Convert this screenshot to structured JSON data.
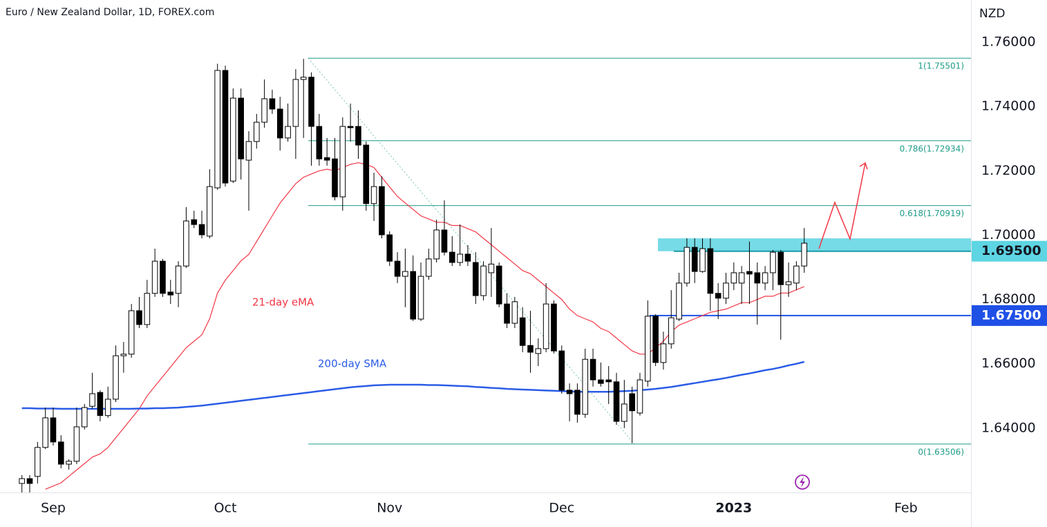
{
  "chart_data": {
    "type": "candlestick",
    "title": "Euro / New Zealand Dollar, 1D, FOREX.com",
    "unit": "NZD",
    "categories": [
      null,
      null,
      null,
      null,
      "Sep",
      null,
      null,
      null,
      null,
      null,
      null,
      null,
      null,
      null,
      null,
      null,
      null,
      null,
      null,
      null,
      null,
      null,
      null,
      null,
      null,
      null,
      "Oct",
      null,
      null,
      null,
      null,
      null,
      null,
      null,
      null,
      null,
      null,
      null,
      null,
      null,
      null,
      null,
      null,
      null,
      null,
      null,
      null,
      "Nov",
      null,
      null,
      null,
      null,
      null,
      null,
      null,
      null,
      null,
      null,
      null,
      null,
      null,
      null,
      null,
      null,
      null,
      null,
      null,
      null,
      null,
      "Dec",
      null,
      null,
      null,
      null,
      null,
      null,
      null,
      null,
      null,
      null,
      null,
      null,
      null,
      null,
      null,
      null,
      null,
      null,
      null,
      null,
      null,
      "2023",
      null,
      null,
      null,
      null,
      null,
      null,
      null,
      null,
      null,
      null,
      null,
      null,
      null,
      null,
      null,
      null,
      null,
      null,
      null,
      null,
      null,
      "Feb"
    ],
    "open": [
      1.6228,
      1.6243,
      1.625,
      1.634,
      1.6432,
      1.6357,
      1.6288,
      1.6297,
      1.6404,
      1.6468,
      1.6511,
      1.6439,
      1.649,
      1.6625,
      1.663,
      1.6765,
      1.6722,
      1.6819,
      1.6919,
      1.6823,
      1.6819,
      1.6904,
      1.7048,
      1.7033,
      1.6997,
      1.7147,
      1.7512,
      1.7168,
      1.7426,
      1.7233,
      1.7291,
      1.7351,
      1.7424,
      1.7392,
      1.7302,
      1.7338,
      1.7484,
      1.7491,
      1.7338,
      1.7241,
      1.7237,
      1.7119,
      1.7338,
      1.7338,
      1.728,
      1.7098,
      1.7151,
      1.7001,
      1.6919,
      1.6872,
      1.6887,
      1.6739,
      1.6872,
      1.6926,
      1.7016,
      1.6947,
      1.6915,
      1.6941,
      1.6915,
      1.6812,
      1.6883,
      1.6904,
      1.6786,
      1.6726,
      1.6743,
      1.6657,
      1.6632,
      1.6647,
      1.6786,
      1.664,
      1.6518,
      1.6518,
      1.6443,
      1.6614,
      1.655,
      1.655,
      1.6544,
      1.6421,
      1.6507,
      1.6447,
      1.6546,
      1.6748,
      1.6604,
      1.6662,
      1.6739,
      1.6851,
      1.6962,
      1.6887,
      1.6958,
      1.6819,
      1.6804,
      1.6851,
      1.6851,
      1.6887,
      1.6883,
      1.6851,
      1.6883,
      1.6947,
      1.6846,
      1.6851,
      1.6904,
      null,
      null,
      null,
      null,
      null,
      null,
      null,
      null,
      null,
      null,
      null,
      null,
      null
    ],
    "high": [
      1.6254,
      1.6254,
      1.6357,
      1.6464,
      1.6464,
      1.6378,
      1.6303,
      1.6464,
      1.6475,
      1.6572,
      1.6518,
      1.6529,
      1.6657,
      1.6668,
      1.6786,
      1.6808,
      1.6861,
      1.6958,
      1.6926,
      1.6861,
      1.6919,
      1.7087,
      1.7076,
      1.7076,
      1.7205,
      1.7533,
      1.7527,
      1.7456,
      1.7456,
      1.7323,
      1.7377,
      1.7484,
      1.7452,
      1.743,
      1.7409,
      1.7516,
      1.7548,
      1.7506,
      1.7377,
      1.7302,
      1.7302,
      1.7366,
      1.7409,
      1.7388,
      1.7291,
      1.7194,
      1.7183,
      1.7012,
      1.6947,
      1.6958,
      1.6937,
      1.6915,
      1.6958,
      1.7048,
      1.7108,
      1.6997,
      1.7033,
      1.6969,
      1.6947,
      1.6919,
      1.7022,
      1.6915,
      1.6819,
      1.6808,
      1.6776,
      1.6765,
      1.6679,
      1.6851,
      1.6797,
      1.6657,
      1.6539,
      1.6539,
      1.6647,
      1.6647,
      1.6604,
      1.6593,
      1.6572,
      1.655,
      1.6529,
      1.6572,
      1.6797,
      1.6754,
      1.67,
      1.6829,
      1.6883,
      1.699,
      1.699,
      1.699,
      1.699,
      1.6851,
      1.6883,
      1.6915,
      1.6904,
      1.698,
      1.6915,
      1.6904,
      1.6954,
      1.6954,
      1.6915,
      1.6919,
      1.7022,
      null,
      null,
      null,
      null,
      null,
      null,
      null,
      null,
      null,
      null,
      null,
      null,
      null
    ],
    "low": [
      1.62,
      1.62,
      1.6228,
      1.6335,
      1.6346,
      1.6275,
      1.6271,
      1.6288,
      1.6396,
      1.646,
      1.6421,
      1.6432,
      1.6481,
      1.6572,
      1.6619,
      1.6711,
      1.6711,
      1.6808,
      1.6808,
      1.6786,
      1.6776,
      1.6898,
      1.7022,
      1.699,
      1.699,
      1.7141,
      1.7151,
      1.7162,
      1.7173,
      1.7076,
      1.7269,
      1.7334,
      1.7377,
      1.7263,
      1.7291,
      1.7237,
      1.7302,
      1.7216,
      1.7216,
      1.7216,
      1.7108,
      1.7076,
      1.7291,
      1.7237,
      1.7076,
      1.7044,
      1.699,
      1.6904,
      1.6851,
      1.6776,
      1.6733,
      1.6733,
      1.6861,
      1.6915,
      1.6937,
      1.6904,
      1.6904,
      1.6904,
      1.6786,
      1.6797,
      1.6808,
      1.6776,
      1.6711,
      1.6711,
      1.6636,
      1.6572,
      1.6593,
      1.6636,
      1.6632,
      1.6507,
      1.6421,
      1.6417,
      1.6432,
      1.6529,
      1.6529,
      1.6475,
      1.641,
      1.64,
      1.6353,
      1.6439,
      1.6529,
      1.6593,
      1.6582,
      1.6647,
      1.6733,
      1.684,
      1.6851,
      1.6883,
      1.6765,
      1.6739,
      1.6786,
      1.6829,
      1.6786,
      1.6786,
      1.6722,
      1.6829,
      1.6829,
      1.6675,
      1.6808,
      1.6829,
      1.6883,
      null,
      null,
      null,
      null,
      null,
      null,
      null,
      null,
      null,
      null,
      null,
      null,
      null
    ],
    "close": [
      1.6243,
      1.6228,
      1.634,
      1.6432,
      1.6357,
      1.6288,
      1.6297,
      1.6404,
      1.6464,
      1.6507,
      1.6439,
      1.649,
      1.6625,
      1.663,
      1.6765,
      1.6722,
      1.6819,
      1.6919,
      1.6819,
      1.6814,
      1.6904,
      1.7044,
      1.7033,
      1.7001,
      1.7151,
      1.7512,
      1.7162,
      1.7426,
      1.7237,
      1.7291,
      1.7351,
      1.7424,
      1.7392,
      1.7302,
      1.7338,
      1.7484,
      1.7491,
      1.7338,
      1.7237,
      1.7233,
      1.7119,
      1.7338,
      1.7334,
      1.728,
      1.7098,
      1.7151,
      1.7001,
      1.6919,
      1.6872,
      1.6887,
      1.6739,
      1.6872,
      1.6926,
      1.7016,
      1.6947,
      1.6915,
      1.6941,
      1.6919,
      1.6812,
      1.6904,
      1.691,
      1.6786,
      1.6726,
      1.6793,
      1.6657,
      1.6636,
      1.6647,
      1.6786,
      1.664,
      1.6518,
      1.6507,
      1.6443,
      1.6614,
      1.655,
      1.6539,
      1.6544,
      1.6421,
      1.6475,
      1.6454,
      1.655,
      1.6748,
      1.6604,
      1.6662,
      1.6743,
      1.6851,
      1.6962,
      1.6887,
      1.6958,
      1.6819,
      1.6804,
      1.6851,
      1.6883,
      1.6883,
      1.6879,
      1.6851,
      1.6883,
      1.6947,
      1.6846,
      1.6855,
      1.6904,
      1.6975,
      null,
      null,
      null,
      null,
      null,
      null,
      null,
      null,
      null,
      null,
      null,
      null,
      null
    ],
    "up_color": "#ffffff",
    "down_color": "#000000",
    "series": [
      {
        "name": "21-day eMA",
        "color": "#f23645",
        "values": [
          null,
          null,
          null,
          1.621,
          1.622,
          1.623,
          1.625,
          1.627,
          1.629,
          1.631,
          1.632,
          1.634,
          1.637,
          1.64,
          1.643,
          1.646,
          1.65,
          1.653,
          1.656,
          1.659,
          1.662,
          1.665,
          1.667,
          1.669,
          1.674,
          1.682,
          1.686,
          1.689,
          1.692,
          1.694,
          1.698,
          1.702,
          1.706,
          1.71,
          1.713,
          1.716,
          1.718,
          1.719,
          1.72,
          1.7205,
          1.72,
          1.721,
          1.722,
          1.7225,
          1.722,
          1.721,
          1.718,
          1.715,
          1.712,
          1.71,
          1.708,
          1.706,
          1.705,
          1.704,
          1.704,
          1.703,
          1.703,
          1.702,
          1.701,
          1.699,
          1.697,
          1.695,
          1.693,
          1.691,
          1.689,
          1.688,
          1.686,
          1.684,
          1.682,
          1.68,
          1.677,
          1.675,
          1.674,
          1.673,
          1.671,
          1.67,
          1.668,
          1.666,
          1.664,
          1.663,
          1.663,
          1.665,
          1.667,
          1.67,
          1.672,
          1.673,
          1.674,
          1.675,
          1.676,
          1.6765,
          1.677,
          1.678,
          1.679,
          1.679,
          1.68,
          1.681,
          1.681,
          1.682,
          1.682,
          1.683,
          1.684,
          null,
          null,
          null,
          null,
          null,
          null,
          null,
          null,
          null,
          null,
          null,
          null,
          null
        ]
      },
      {
        "name": "200-day SMA",
        "color": "#2a5ce6",
        "values": [
          1.6462,
          1.6462,
          1.6461,
          1.6461,
          1.6461,
          1.646,
          1.646,
          1.646,
          1.646,
          1.646,
          1.646,
          1.646,
          1.646,
          1.646,
          1.646,
          1.6461,
          1.6461,
          1.6462,
          1.6462,
          1.6463,
          1.6464,
          1.6466,
          1.6468,
          1.647,
          1.6473,
          1.6476,
          1.6479,
          1.6482,
          1.6485,
          1.6488,
          1.6491,
          1.6494,
          1.6497,
          1.65,
          1.6503,
          1.6506,
          1.6509,
          1.6512,
          1.6515,
          1.6518,
          1.6521,
          1.6524,
          1.6527,
          1.6529,
          1.6531,
          1.6533,
          1.6534,
          1.6535,
          1.6535,
          1.6535,
          1.6535,
          1.6535,
          1.6534,
          1.6534,
          1.6533,
          1.6532,
          1.6531,
          1.653,
          1.6528,
          1.6527,
          1.6525,
          1.6524,
          1.6522,
          1.6521,
          1.652,
          1.6519,
          1.6518,
          1.6517,
          1.6516,
          1.6515,
          1.6514,
          1.6513,
          1.6513,
          1.6513,
          1.6513,
          1.6513,
          1.6514,
          1.6515,
          1.6516,
          1.6518,
          1.652,
          1.6522,
          1.6525,
          1.6528,
          1.6532,
          1.6536,
          1.654,
          1.6544,
          1.6548,
          1.6552,
          1.6556,
          1.6561,
          1.6566,
          1.657,
          1.6575,
          1.658,
          1.6584,
          1.6589,
          1.6595,
          1.66,
          1.6606,
          null,
          null,
          null,
          null,
          null,
          null,
          null,
          null,
          null,
          null,
          null,
          null,
          null
        ]
      }
    ],
    "ylim": [
      1.62,
      1.7731
    ],
    "yticks": [
      {
        "value": 1.76,
        "label": "1.76000"
      },
      {
        "value": 1.74,
        "label": "1.74000"
      },
      {
        "value": 1.72,
        "label": "1.72000"
      },
      {
        "value": 1.7,
        "label": "1.70000"
      },
      {
        "value": 1.68,
        "label": "1.68000"
      },
      {
        "value": 1.66,
        "label": "1.66000"
      },
      {
        "value": 1.64,
        "label": "1.64000"
      }
    ],
    "grid": false,
    "fib_color": "#1e9c88",
    "fib_levels": [
      {
        "value": 1.75501,
        "label": "1(1.75501)"
      },
      {
        "value": 1.72934,
        "label": "0.786(1.72934)"
      },
      {
        "value": 1.70919,
        "label": "0.618(1.70919)"
      },
      {
        "value": 1.63506,
        "label": "0(1.63506)"
      }
    ],
    "zone": [
      1.695,
      1.699
    ],
    "levels": [
      {
        "value": 1.695,
        "label": "1.69500",
        "color": "#5ed5e2",
        "line_color": "#179aa6"
      },
      {
        "value": 1.675,
        "label": "1.67500",
        "color": "#1f50e6",
        "line_color": "#1f50e6"
      }
    ]
  }
}
